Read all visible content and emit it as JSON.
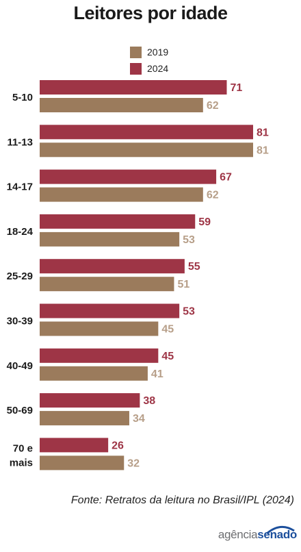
{
  "title": "Leitores por idade",
  "legend": [
    {
      "label": "2019",
      "color": "#9b7b5c"
    },
    {
      "label": "2024",
      "color": "#9e3546"
    }
  ],
  "source": "Fonte: Retratos da leitura no Brasil/IPL (2024)",
  "logo": {
    "part1": "agência",
    "part2": "senado"
  },
  "chart_data": {
    "type": "bar",
    "orientation": "horizontal",
    "title": "Leitores por idade",
    "categories": [
      "5-10",
      "11-13",
      "14-17",
      "18-24",
      "25-29",
      "30-39",
      "40-49",
      "50-69",
      "70 e mais"
    ],
    "series": [
      {
        "name": "2024",
        "color": "#9e3546",
        "label_color": "#9e3546",
        "values": [
          71,
          81,
          67,
          59,
          55,
          53,
          45,
          38,
          26
        ]
      },
      {
        "name": "2019",
        "color": "#9b7b5c",
        "label_color": "#b79f89",
        "values": [
          62,
          81,
          62,
          53,
          51,
          45,
          41,
          34,
          32
        ]
      }
    ],
    "xlim": [
      0,
      85
    ],
    "grid": false,
    "legend_position": "top-center",
    "data_labels": true
  }
}
